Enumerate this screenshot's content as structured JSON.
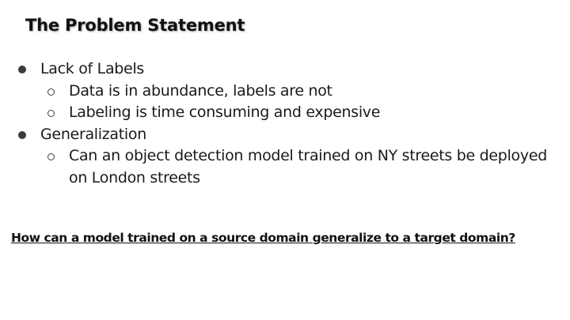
{
  "slide": {
    "title": "The Problem Statement",
    "bullets": [
      {
        "text": "Lack of Labels",
        "subitems": [
          "Data is in abundance, labels are not",
          "Labeling is time consuming and expensive"
        ]
      },
      {
        "text": "Generalization",
        "subitems": [
          "Can an object detection model trained on NY streets be deployed on London streets"
        ]
      }
    ],
    "question": "How can a model trained on a source domain generalize to a target domain?"
  }
}
